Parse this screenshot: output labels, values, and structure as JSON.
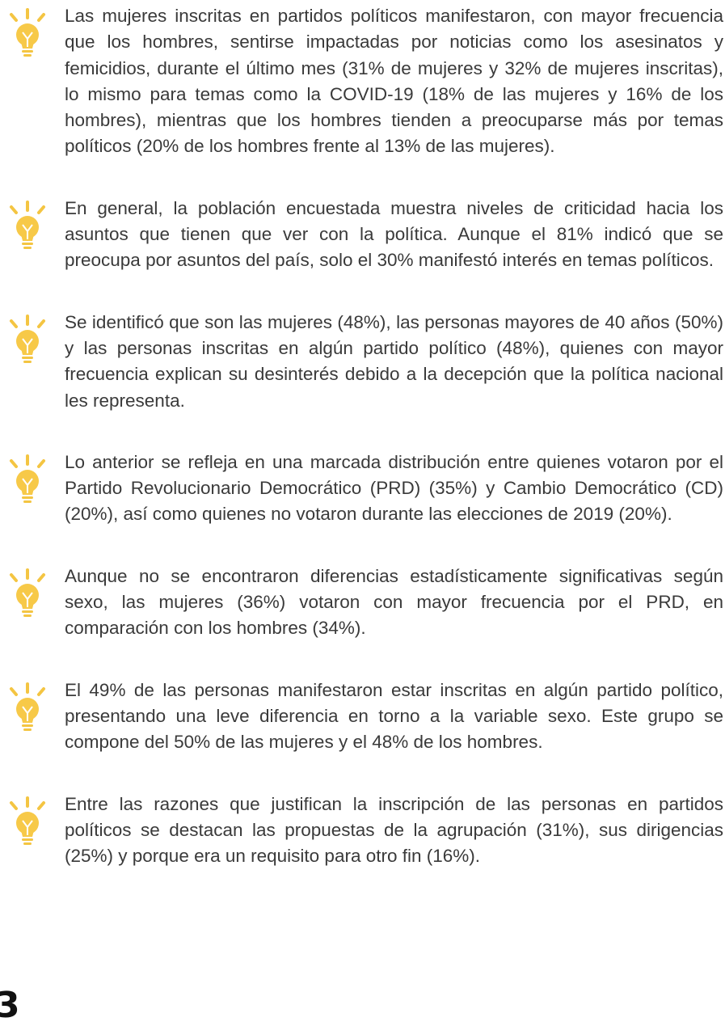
{
  "paragraphs": [
    "Las mujeres  inscritas en partidos políticos manifestaron, con mayor frecuencia que los hombres, sentirse impactadas por noticias como los asesinatos y femicidios, durante el último mes (31% de mujeres y 32% de mujeres inscritas), lo mismo para temas como la COVID-19 (18% de las mujeres y 16% de los hombres), mientras que los hombres tienden a preocuparse más por temas políticos (20% de los hombres frente al 13% de las mujeres).",
    "En general, la población encuestada muestra niveles de criticidad hacia los asuntos que tienen que ver con la política. Aunque el 81% indicó que se preocupa por asuntos del país, solo el 30% manifestó interés en temas políticos.",
    "Se identificó que son las mujeres (48%), las personas mayores de 40 años (50%) y las personas inscritas en algún partido político (48%), quienes con mayor frecuencia explican su desinterés debido a la decepción que la política nacional les representa.",
    "Lo anterior se refleja en una marcada distribución entre quienes votaron por el Partido Revolucionario Democrático (PRD) (35%) y Cambio Democrático (CD) (20%), así como quienes no votaron durante las elecciones de 2019 (20%).",
    "Aunque no se encontraron diferencias estadísticamente significativas según sexo, las mujeres (36%) votaron con mayor frecuencia por el PRD, en comparación con los hombres (34%).",
    "El 49% de las personas manifestaron estar inscritas en algún partido político, presentando una leve diferencia en torno a la variable sexo. Este grupo se compone del 50% de las mujeres y el 48% de los hombres.",
    "Entre las razones que justifican la inscripción de las personas en partidos políticos se destacan las propuestas de la agrupación (31%), sus dirigencias (25%) y porque era un requisito para otro fin (16%)."
  ],
  "page_number": "3"
}
